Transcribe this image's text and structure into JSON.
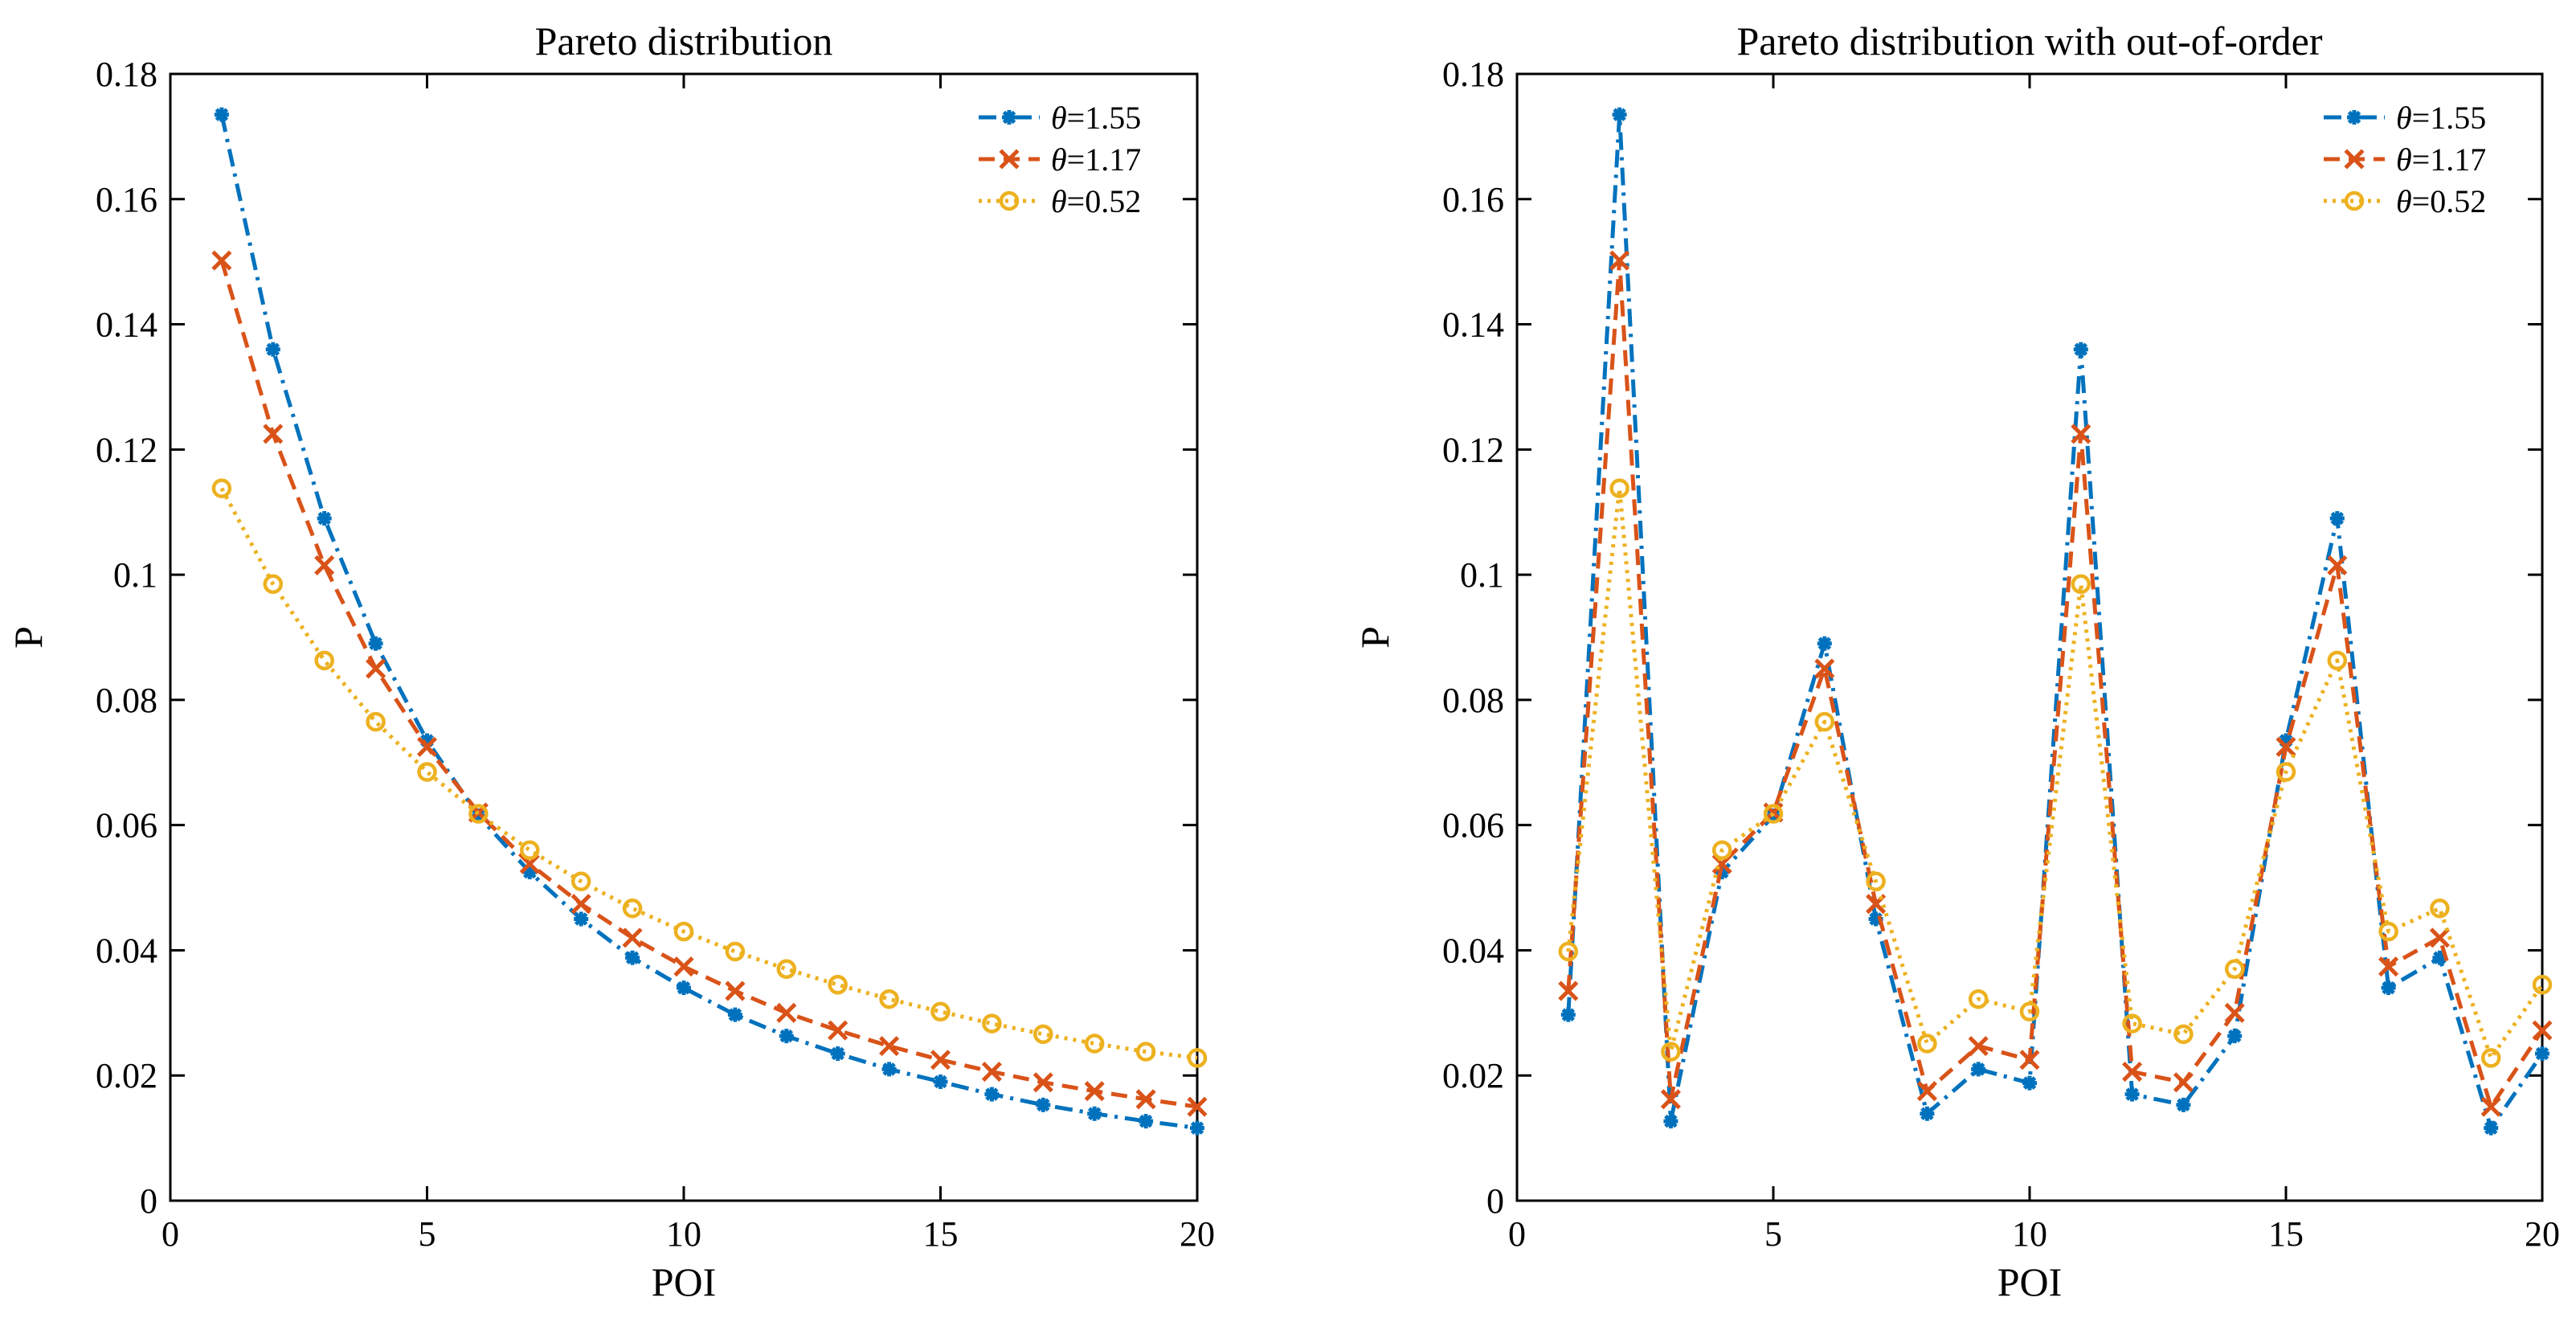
{
  "chart_data": [
    {
      "type": "line",
      "title": "Pareto distribution",
      "xlabel": "POI",
      "ylabel": "P",
      "xlim": [
        0,
        20
      ],
      "ylim": [
        0,
        0.18
      ],
      "xticks": [
        0,
        5,
        10,
        15,
        20
      ],
      "xtick_labels": [
        "0",
        "5",
        "10",
        "15",
        "20"
      ],
      "yticks": [
        0,
        0.02,
        0.04,
        0.06,
        0.08,
        0.1,
        0.12,
        0.14,
        0.16,
        0.18
      ],
      "ytick_labels": [
        "0",
        "0.02",
        "0.04",
        "0.06",
        "0.08",
        "0.1",
        "0.12",
        "0.14",
        "0.16",
        "0.18"
      ],
      "legend_position": "top-right",
      "x": [
        1,
        2,
        3,
        4,
        5,
        6,
        7,
        8,
        9,
        10,
        11,
        12,
        13,
        14,
        15,
        16,
        17,
        18,
        19,
        20
      ],
      "series": [
        {
          "name_prefix": "θ",
          "name_value": "=1.55",
          "color": "#0072BD",
          "dash": "dashdot",
          "marker": "star",
          "values": [
            0.1735,
            0.136,
            0.109,
            0.089,
            0.0735,
            0.0615,
            0.0525,
            0.045,
            0.0388,
            0.034,
            0.0297,
            0.0263,
            0.0235,
            0.021,
            0.019,
            0.017,
            0.0153,
            0.0139,
            0.0127,
            0.0116
          ]
        },
        {
          "name_prefix": "θ",
          "name_value": "=1.17",
          "color": "#D95319",
          "dash": "dashed",
          "marker": "x",
          "values": [
            0.1502,
            0.1225,
            0.1015,
            0.085,
            0.0725,
            0.062,
            0.0538,
            0.0474,
            0.042,
            0.0374,
            0.0335,
            0.03,
            0.0272,
            0.0247,
            0.0225,
            0.0206,
            0.0189,
            0.0175,
            0.0162,
            0.015
          ]
        },
        {
          "name_prefix": "θ",
          "name_value": "=0.52",
          "color": "#EDB120",
          "dash": "dotted",
          "marker": "circle",
          "values": [
            0.1138,
            0.0985,
            0.0863,
            0.0765,
            0.0685,
            0.0618,
            0.056,
            0.051,
            0.0467,
            0.043,
            0.0398,
            0.037,
            0.0345,
            0.0322,
            0.0302,
            0.0283,
            0.0266,
            0.0251,
            0.0238,
            0.0228
          ]
        }
      ]
    },
    {
      "type": "line",
      "title": "Pareto distribution with out-of-order",
      "xlabel": "POI",
      "ylabel": "P",
      "xlim": [
        0,
        20
      ],
      "ylim": [
        0,
        0.18
      ],
      "xticks": [
        0,
        5,
        10,
        15,
        20
      ],
      "xtick_labels": [
        "0",
        "5",
        "10",
        "15",
        "20"
      ],
      "yticks": [
        0,
        0.02,
        0.04,
        0.06,
        0.08,
        0.1,
        0.12,
        0.14,
        0.16,
        0.18
      ],
      "ytick_labels": [
        "0",
        "0.02",
        "0.04",
        "0.06",
        "0.08",
        "0.1",
        "0.12",
        "0.14",
        "0.16",
        "0.18"
      ],
      "legend_position": "top-right",
      "x": [
        1,
        2,
        3,
        4,
        5,
        6,
        7,
        8,
        9,
        10,
        11,
        12,
        13,
        14,
        15,
        16,
        17,
        18,
        19,
        20
      ],
      "series": [
        {
          "name_prefix": "θ",
          "name_value": "=1.55",
          "color": "#0072BD",
          "dash": "dashdot",
          "marker": "star",
          "values": [
            0.0297,
            0.1735,
            0.0127,
            0.0525,
            0.0615,
            0.089,
            0.045,
            0.0139,
            0.021,
            0.0188,
            0.136,
            0.017,
            0.0153,
            0.0263,
            0.0735,
            0.109,
            0.034,
            0.0388,
            0.0116,
            0.0235
          ]
        },
        {
          "name_prefix": "θ",
          "name_value": "=1.17",
          "color": "#D95319",
          "dash": "dashed",
          "marker": "x",
          "values": [
            0.0335,
            0.1502,
            0.0162,
            0.0538,
            0.062,
            0.085,
            0.0474,
            0.0175,
            0.0247,
            0.0225,
            0.1225,
            0.0206,
            0.0189,
            0.03,
            0.0725,
            0.1015,
            0.0374,
            0.042,
            0.015,
            0.0272
          ]
        },
        {
          "name_prefix": "θ",
          "name_value": "=0.52",
          "color": "#EDB120",
          "dash": "dotted",
          "marker": "circle",
          "values": [
            0.0398,
            0.1138,
            0.0238,
            0.056,
            0.0618,
            0.0765,
            0.051,
            0.0251,
            0.0322,
            0.0302,
            0.0985,
            0.0283,
            0.0266,
            0.037,
            0.0685,
            0.0863,
            0.043,
            0.0467,
            0.0228,
            0.0345
          ]
        }
      ]
    }
  ]
}
